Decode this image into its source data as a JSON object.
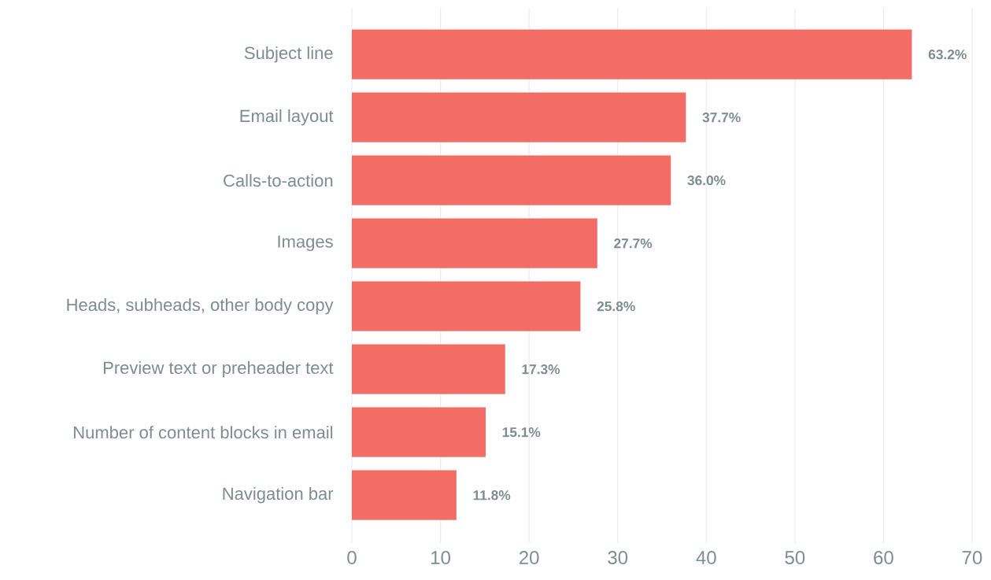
{
  "chart_data": {
    "type": "bar",
    "orientation": "horizontal",
    "categories": [
      "Subject line",
      "Email layout",
      "Calls-to-action",
      "Images",
      "Heads, subheads, other body copy",
      "Preview text or preheader text",
      "Number of content blocks in email",
      "Navigation bar"
    ],
    "values": [
      63.2,
      37.7,
      36.0,
      27.7,
      25.8,
      17.3,
      15.1,
      11.8
    ],
    "value_labels": [
      "63.2%",
      "37.7%",
      "36.0%",
      "27.7%",
      "25.8%",
      "17.3%",
      "15.1%",
      "11.8%"
    ],
    "color": "#f36c66",
    "xlim": [
      0,
      70
    ],
    "xticks": [
      0,
      10,
      20,
      30,
      40,
      50,
      60,
      70
    ],
    "grid": "x"
  }
}
